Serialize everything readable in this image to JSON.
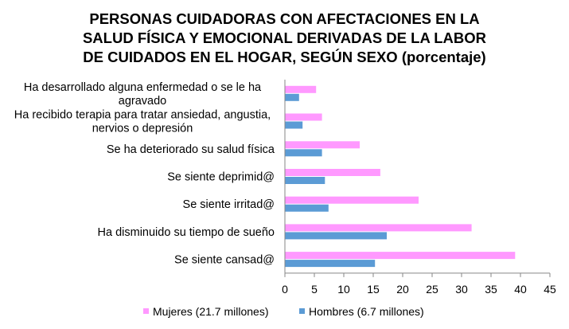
{
  "chart_data": {
    "type": "bar",
    "orientation": "horizontal",
    "title_lines": [
      "PERSONAS CUIDADORAS CON AFECTACIONES EN LA",
      "SALUD FÍSICA Y EMOCIONAL DERIVADAS DE LA LABOR",
      "DE CUIDADOS EN EL HOGAR, SEGÚN SEXO (porcentaje)"
    ],
    "categories": [
      [
        "Ha desarrollado alguna enfermedad o se le ha",
        "agravado"
      ],
      [
        "Ha recibido terapia para tratar ansiedad, angustia,",
        "nervios o depresión"
      ],
      [
        "Se ha deteriorado su salud física"
      ],
      [
        "Se siente deprimid@"
      ],
      [
        "Se siente irritad@"
      ],
      [
        "Ha disminuido su tiempo de sueño"
      ],
      [
        "Se siente cansad@"
      ]
    ],
    "series": [
      {
        "name": "Mujeres (21.7 millones)",
        "color": "#ff99ff",
        "values": [
          5.3,
          6.3,
          12.7,
          16.2,
          22.7,
          31.7,
          39.1
        ]
      },
      {
        "name": "Hombres (6.7 millones)",
        "color": "#5b9bd5",
        "values": [
          2.4,
          3.0,
          6.3,
          6.8,
          7.4,
          17.3,
          15.3
        ]
      }
    ],
    "xlim": [
      0,
      45
    ],
    "xticks": [
      "0",
      "5",
      "10",
      "15",
      "20",
      "25",
      "30",
      "35",
      "40",
      "45"
    ],
    "xlabel": "",
    "ylabel": "",
    "legend_position": "bottom",
    "grid": false
  }
}
